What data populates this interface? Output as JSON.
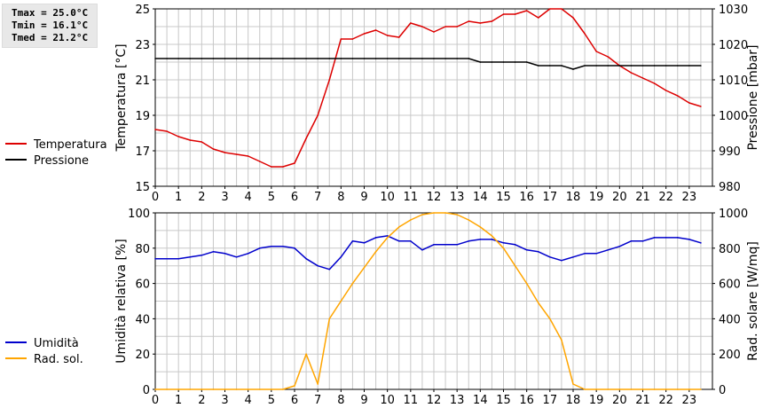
{
  "stats": {
    "tmax": "Tmax = 25.0°C",
    "tmin": "Tmin = 16.1°C",
    "tmed": "Tmed = 21.2°C"
  },
  "colors": {
    "temperature": "#dd0000",
    "pressure": "#000000",
    "humidity": "#0000cc",
    "radiation": "#ffa500",
    "grid": "#c8c8c8"
  },
  "chart_data": [
    {
      "type": "line",
      "xlim": [
        0,
        24
      ],
      "x_ticks": [
        "0",
        "1",
        "2",
        "3",
        "4",
        "5",
        "6",
        "7",
        "8",
        "9",
        "10",
        "11",
        "12",
        "13",
        "14",
        "15",
        "16",
        "17",
        "18",
        "19",
        "20",
        "21",
        "22",
        "23"
      ],
      "ylabel": "Temperatura [°C]",
      "ylim": [
        15,
        25
      ],
      "y_ticks": [
        "15",
        "17",
        "19",
        "21",
        "23",
        "25"
      ],
      "ylabel_right": "Pressione [mbar]",
      "ylim_right": [
        980,
        1030
      ],
      "y_ticks_right": [
        "980",
        "990",
        "1000",
        "1010",
        "1020",
        "1030"
      ],
      "grid": true,
      "legend_position": "left",
      "series": [
        {
          "name": "Temperatura",
          "axis": "left",
          "x": [
            0,
            0.5,
            1,
            1.5,
            2,
            2.5,
            3,
            3.5,
            4,
            4.5,
            5,
            5.5,
            6,
            6.5,
            7,
            7.5,
            8,
            8.5,
            9,
            9.5,
            10,
            10.5,
            11,
            11.5,
            12,
            12.5,
            13,
            13.5,
            14,
            14.5,
            15,
            15.5,
            16,
            16.5,
            17,
            17.5,
            18,
            18.5,
            19,
            19.5,
            20,
            20.5,
            21,
            21.5,
            22,
            22.5,
            23,
            23.5
          ],
          "values": [
            18.2,
            18.1,
            17.8,
            17.6,
            17.5,
            17.1,
            16.9,
            16.8,
            16.7,
            16.4,
            16.1,
            16.1,
            16.3,
            17.7,
            19.0,
            21.0,
            23.3,
            23.3,
            23.6,
            23.8,
            23.5,
            23.4,
            24.2,
            24.0,
            23.7,
            24.0,
            24.0,
            24.3,
            24.2,
            24.3,
            24.7,
            24.7,
            24.9,
            24.5,
            25.0,
            25.0,
            24.5,
            23.6,
            22.6,
            22.3,
            21.8,
            21.4,
            21.1,
            20.8,
            20.4,
            20.1,
            19.7,
            19.5
          ]
        },
        {
          "name": "Pressione",
          "axis": "right",
          "x": [
            0,
            0.5,
            1,
            1.5,
            2,
            2.5,
            3,
            3.5,
            4,
            4.5,
            5,
            5.5,
            6,
            6.5,
            7,
            7.5,
            8,
            8.5,
            9,
            9.5,
            10,
            10.5,
            11,
            11.5,
            12,
            12.5,
            13,
            13.5,
            14,
            14.5,
            15,
            15.5,
            16,
            16.5,
            17,
            17.5,
            18,
            18.5,
            19,
            19.5,
            20,
            20.5,
            21,
            21.5,
            22,
            22.5,
            23,
            23.5
          ],
          "values": [
            1016,
            1016,
            1016,
            1016,
            1016,
            1016,
            1016,
            1016,
            1016,
            1016,
            1016,
            1016,
            1016,
            1016,
            1016,
            1016,
            1016,
            1016,
            1016,
            1016,
            1016,
            1016,
            1016,
            1016,
            1016,
            1016,
            1016,
            1016,
            1015,
            1015,
            1015,
            1015,
            1015,
            1014,
            1014,
            1014,
            1013,
            1014,
            1014,
            1014,
            1014,
            1014,
            1014,
            1014,
            1014,
            1014,
            1014,
            1014
          ]
        }
      ]
    },
    {
      "type": "line",
      "xlim": [
        0,
        24
      ],
      "x_ticks": [
        "0",
        "1",
        "2",
        "3",
        "4",
        "5",
        "6",
        "7",
        "8",
        "9",
        "10",
        "11",
        "12",
        "13",
        "14",
        "15",
        "16",
        "17",
        "18",
        "19",
        "20",
        "21",
        "22",
        "23"
      ],
      "ylabel": "Umidità relativa [%]",
      "ylim": [
        0,
        100
      ],
      "y_ticks": [
        "0",
        "20",
        "40",
        "60",
        "80",
        "100"
      ],
      "ylabel_right": "Rad. solare [W/mq]",
      "ylim_right": [
        0,
        1000
      ],
      "y_ticks_right": [
        "0",
        "200",
        "400",
        "600",
        "800",
        "1000"
      ],
      "grid": true,
      "legend_position": "left",
      "series": [
        {
          "name": "Umidità",
          "axis": "left",
          "x": [
            0,
            0.5,
            1,
            1.5,
            2,
            2.5,
            3,
            3.5,
            4,
            4.5,
            5,
            5.5,
            6,
            6.5,
            7,
            7.5,
            8,
            8.5,
            9,
            9.5,
            10,
            10.5,
            11,
            11.5,
            12,
            12.5,
            13,
            13.5,
            14,
            14.5,
            15,
            15.5,
            16,
            16.5,
            17,
            17.5,
            18,
            18.5,
            19,
            19.5,
            20,
            20.5,
            21,
            21.5,
            22,
            22.5,
            23,
            23.5
          ],
          "values": [
            74,
            74,
            74,
            75,
            76,
            78,
            77,
            75,
            77,
            80,
            81,
            81,
            80,
            74,
            70,
            68,
            75,
            84,
            83,
            86,
            87,
            84,
            84,
            79,
            82,
            82,
            82,
            84,
            85,
            85,
            83,
            82,
            79,
            78,
            75,
            73,
            75,
            77,
            77,
            79,
            81,
            84,
            84,
            86,
            86,
            86,
            85,
            83
          ]
        },
        {
          "name": "Rad. sol.",
          "axis": "right",
          "x": [
            0,
            0.5,
            1,
            1.5,
            2,
            2.5,
            3,
            3.5,
            4,
            4.5,
            5,
            5.5,
            6,
            6.5,
            7,
            7.5,
            8,
            8.5,
            9,
            9.5,
            10,
            10.5,
            11,
            11.5,
            12,
            12.5,
            13,
            13.5,
            14,
            14.5,
            15,
            15.5,
            16,
            16.5,
            17,
            17.5,
            18,
            18.5,
            19,
            19.5,
            20,
            20.5,
            21,
            21.5,
            22,
            22.5,
            23,
            23.5
          ],
          "values": [
            0,
            0,
            0,
            0,
            0,
            0,
            0,
            0,
            0,
            0,
            0,
            0,
            20,
            200,
            30,
            400,
            500,
            600,
            690,
            780,
            860,
            920,
            960,
            990,
            1000,
            1000,
            990,
            960,
            920,
            870,
            800,
            700,
            600,
            490,
            400,
            280,
            30,
            0,
            0,
            0,
            0,
            0,
            0,
            0,
            0,
            0,
            0,
            0
          ]
        }
      ]
    }
  ]
}
